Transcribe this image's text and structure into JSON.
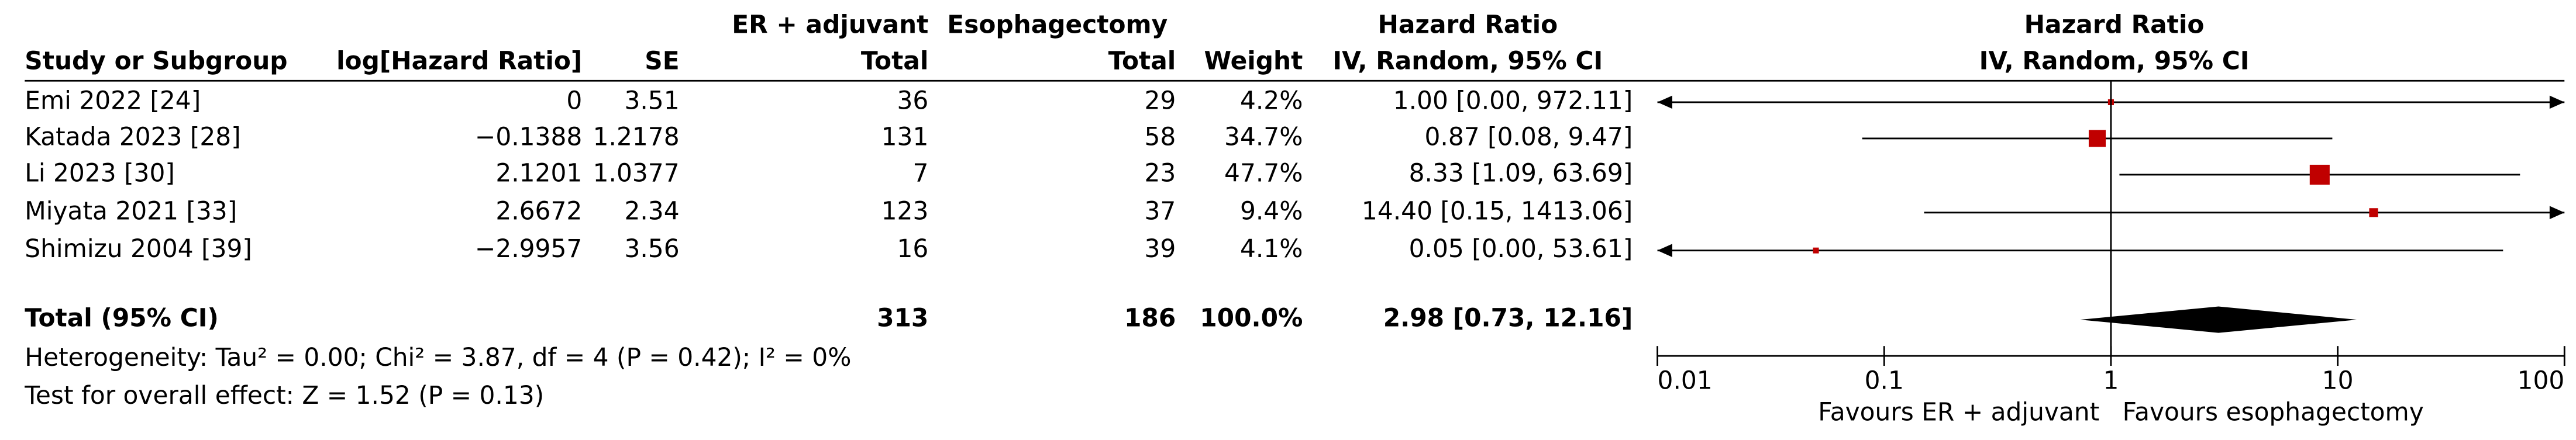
{
  "chart_data": {
    "type": "forest",
    "headers": {
      "group_er": "ER + adjuvant",
      "group_eso": "Esophagectomy",
      "hr_title": "Hazard Ratio",
      "study": "Study or Subgroup",
      "loghr": "log[Hazard Ratio]",
      "se": "SE",
      "er_total": "Total",
      "eso_total": "Total",
      "weight": "Weight",
      "hr_method": "IV, Random, 95% CI",
      "plot_title": "Hazard Ratio",
      "plot_method": "IV, Random, 95% CI"
    },
    "studies": [
      {
        "name": "Emi 2022 [24]",
        "loghr": "0",
        "se": 3.51,
        "er_total": 36,
        "eso_total": 29,
        "weight": 4.2,
        "weight_label": "4.2%",
        "hr": 1.0,
        "lo": 0,
        "hi": 972.11,
        "ci_label": "1.00 [0.00, 972.11]"
      },
      {
        "name": "Katada 2023 [28]",
        "loghr": "−0.1388",
        "se": 1.2178,
        "er_total": 131,
        "eso_total": 58,
        "weight": 34.7,
        "weight_label": "34.7%",
        "hr": 0.87,
        "lo": 0.08,
        "hi": 9.47,
        "ci_label": "0.87 [0.08, 9.47]"
      },
      {
        "name": "Li 2023 [30]",
        "loghr": "2.1201",
        "se": 1.0377,
        "er_total": 7,
        "eso_total": 23,
        "weight": 47.7,
        "weight_label": "47.7%",
        "hr": 8.33,
        "lo": 1.09,
        "hi": 63.69,
        "ci_label": "8.33 [1.09, 63.69]"
      },
      {
        "name": "Miyata 2021 [33]",
        "loghr": "2.6672",
        "se": 2.34,
        "er_total": 123,
        "eso_total": 37,
        "weight": 9.4,
        "weight_label": "9.4%",
        "hr": 14.4,
        "lo": 0.15,
        "hi": 1413.06,
        "ci_label": "14.40 [0.15, 1413.06]"
      },
      {
        "name": "Shimizu 2004 [39]",
        "loghr": "−2.9957",
        "se": 3.56,
        "er_total": 16,
        "eso_total": 39,
        "weight": 4.1,
        "weight_label": "4.1%",
        "hr": 0.05,
        "lo": 0,
        "hi": 53.61,
        "ci_label": "0.05 [0.00, 53.61]"
      }
    ],
    "total": {
      "name": "Total (95% CI)",
      "er_total": 313,
      "eso_total": 186,
      "weight": 100,
      "weight_label": "100.0%",
      "hr": 2.98,
      "lo": 0.73,
      "hi": 12.16,
      "ci_label": "2.98 [0.73, 12.16]"
    },
    "heterogeneity": "Heterogeneity: Tau² = 0.00; Chi² = 3.87, df = 4 (P = 0.42); I² = 0%",
    "overall_effect": "Test for overall effect: Z = 1.52 (P = 0.13)",
    "xscale": "log",
    "xlim": [
      0.01,
      100
    ],
    "xticks": [
      0.01,
      0.1,
      1,
      10,
      100
    ],
    "favours_left": "Favours ER + adjuvant",
    "favours_right": "Favours esophagectomy",
    "color": "#c00000"
  }
}
